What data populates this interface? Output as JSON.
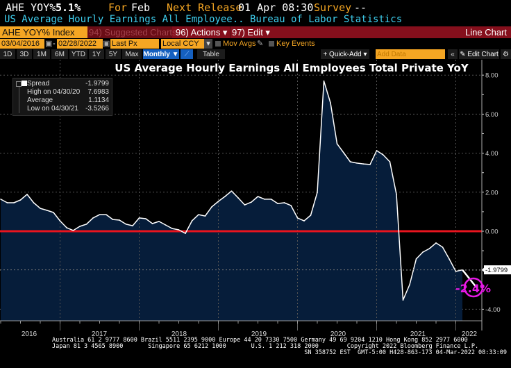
{
  "header": {
    "ticker_label": "AHE YOY%",
    "ticker_value": "5.1%",
    "period_label": "For",
    "period_value": "Feb",
    "next_release_label": "Next Release",
    "next_release_value": "01 Apr 08:30",
    "survey_label": "Survey",
    "survey_value": "--",
    "description": "US Average Hourly Earnings All Employee.. Bureau of Labor Statistics"
  },
  "toolbar": {
    "security": "AHE YOY% Index",
    "suggested": "94) Suggested Charts",
    "actions": "96) Actions ▾",
    "edit": "97) Edit ▾",
    "chart_type": "Line Chart"
  },
  "controls": {
    "start_date": "03/04/2016",
    "end_date": "02/28/2022",
    "field": "Last Px",
    "currency": "Local CCY",
    "mov_avgs": "Mov Avgs",
    "key_events": "Key Events",
    "periods": [
      "1D",
      "3D",
      "1M",
      "6M",
      "YTD",
      "1Y",
      "5Y",
      "Max"
    ],
    "frequency": "Monthly ▼",
    "table": "Table",
    "quick_add": "+ Quick-Add ▾",
    "add_data_placeholder": "Add Data",
    "collapse": "«",
    "edit_chart": "✎ Edit Chart",
    "settings": "⚙"
  },
  "legend": {
    "series": {
      "label": "Spread",
      "value": "-1.9799"
    },
    "high": {
      "label": "High on 04/30/20",
      "value": "7.6983"
    },
    "average": {
      "label": "Average",
      "value": "1.1134"
    },
    "low": {
      "label": "Low on 04/30/21",
      "value": "-3.5266"
    }
  },
  "chart_data": {
    "type": "area",
    "title": "US Average Hourly Earnings All Employees Total Private YoY",
    "frequency": "monthly",
    "start": "2016-03",
    "x_tick_labels": [
      "2016",
      "2017",
      "2018",
      "2019",
      "2020",
      "2021",
      "2022"
    ],
    "y_tick_labels": [
      "8.00",
      "6.00",
      "4.00",
      "2.00",
      "0.00",
      "-4.00"
    ],
    "ylim": [
      -4.6,
      8.3
    ],
    "grid": true,
    "reference_line": {
      "value": 0,
      "color": "#e8141e"
    },
    "last_value_label": "-1.9799",
    "annotation": {
      "text": "-2.4%",
      "color": "#e619e6"
    },
    "series": [
      {
        "name": "Spread",
        "color": "#ffffff",
        "fill": "#061d3a",
        "dates": [
          "2016-03",
          "2016-04",
          "2016-05",
          "2016-06",
          "2016-07",
          "2016-08",
          "2016-09",
          "2016-10",
          "2016-11",
          "2016-12",
          "2017-01",
          "2017-02",
          "2017-03",
          "2017-04",
          "2017-05",
          "2017-06",
          "2017-07",
          "2017-08",
          "2017-09",
          "2017-10",
          "2017-11",
          "2017-12",
          "2018-01",
          "2018-02",
          "2018-03",
          "2018-04",
          "2018-05",
          "2018-06",
          "2018-07",
          "2018-08",
          "2018-09",
          "2018-10",
          "2018-11",
          "2018-12",
          "2019-01",
          "2019-02",
          "2019-03",
          "2019-04",
          "2019-05",
          "2019-06",
          "2019-07",
          "2019-08",
          "2019-09",
          "2019-10",
          "2019-11",
          "2019-12",
          "2020-01",
          "2020-02",
          "2020-03",
          "2020-04",
          "2020-05",
          "2020-06",
          "2020-07",
          "2020-08",
          "2020-09",
          "2020-10",
          "2020-11",
          "2020-12",
          "2021-01",
          "2021-02",
          "2021-03",
          "2021-04",
          "2021-05",
          "2021-06",
          "2021-07",
          "2021-08",
          "2021-09",
          "2021-10",
          "2021-11",
          "2021-12",
          "2022-01"
        ],
        "values": [
          1.64,
          1.46,
          1.46,
          1.6,
          1.89,
          1.46,
          1.17,
          1.07,
          0.96,
          0.53,
          0.18,
          0.04,
          0.25,
          0.36,
          0.68,
          0.85,
          0.85,
          0.6,
          0.57,
          0.36,
          0.28,
          0.68,
          0.64,
          0.39,
          0.5,
          0.32,
          0.14,
          0.07,
          -0.11,
          0.53,
          0.85,
          0.78,
          1.25,
          1.53,
          1.78,
          2.06,
          1.71,
          1.35,
          1.49,
          1.78,
          1.64,
          1.64,
          1.42,
          1.46,
          1.32,
          0.68,
          0.53,
          0.82,
          1.99,
          7.6983,
          6.58,
          4.48,
          4.02,
          3.56,
          3.49,
          3.45,
          3.42,
          4.13,
          3.91,
          3.56,
          1.89,
          -3.5266,
          -2.74,
          -1.42,
          -1.07,
          -0.89,
          -0.6,
          -0.82,
          -1.42,
          -2.06,
          -1.9799
        ]
      }
    ]
  },
  "footer": {
    "line1": "Australia 61 2 9777 8600 Brazil 5511 2395 9000 Europe 44 20 7330 7500 Germany 49 69 9204 1210 Hong Kong 852 2977 6000",
    "line2": "Japan 81 3 4565 8900       Singapore 65 6212 1000       U.S. 1 212 318 2000        Copyright 2022 Bloomberg Finance L.P.",
    "line3": "SN 358752 EST  GMT-5:00 H428-863-173 04-Mar-2022 08:33:09"
  }
}
